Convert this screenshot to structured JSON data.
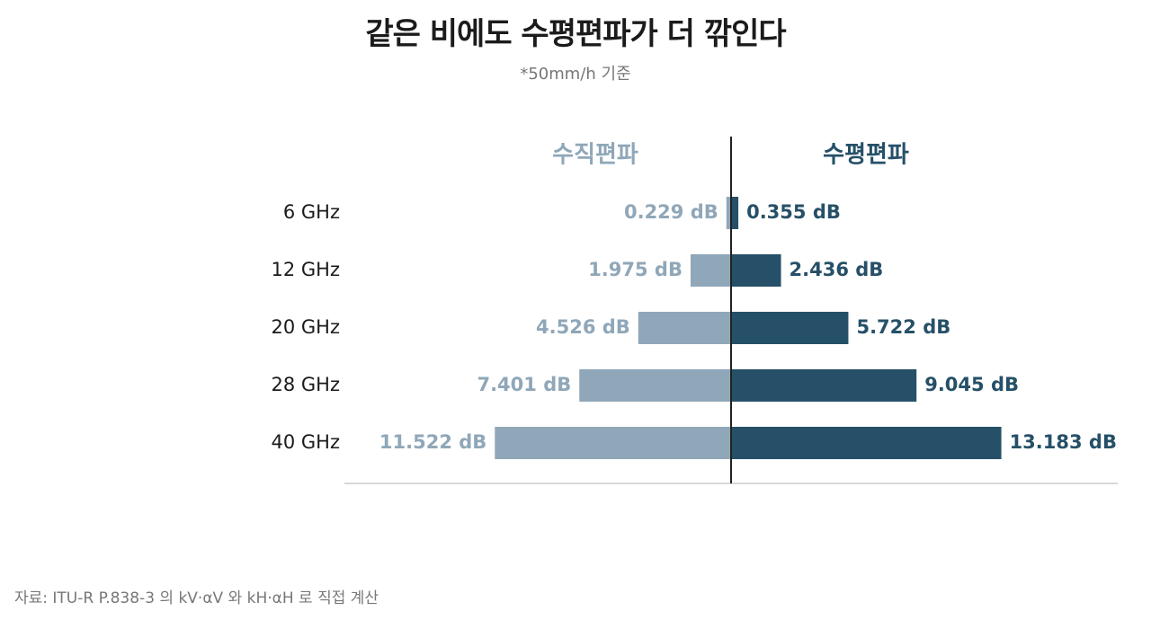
{
  "title": "같은 비에도 수평편파가 더 깎인다",
  "subtitle": "*50mm/h 기준",
  "source": "자료: ITU-R P.838-3 의 kV·αV 와 kH·αH 로 직접 계산",
  "colors": {
    "vertical": "#8fa7b8",
    "horizontal": "#265068",
    "axis": "#222222",
    "baseline": "#cccccc",
    "category_text": "#1b1b1b"
  },
  "chart_data": {
    "type": "bar",
    "orientation": "horizontal-diverging",
    "categories": [
      "6 GHz",
      "12 GHz",
      "20 GHz",
      "28 GHz",
      "40 GHz"
    ],
    "series": [
      {
        "name": "수직편파",
        "side": "left",
        "values": [
          0.229,
          1.975,
          4.526,
          7.401,
          11.522
        ],
        "labels": [
          "0.229 dB",
          "1.975 dB",
          "4.526 dB",
          "7.401 dB",
          "11.522 dB"
        ]
      },
      {
        "name": "수평편파",
        "side": "right",
        "values": [
          0.355,
          2.436,
          5.722,
          9.045,
          13.183
        ],
        "labels": [
          "0.355 dB",
          "2.436 dB",
          "5.722 dB",
          "9.045 dB",
          "13.183 dB"
        ]
      }
    ],
    "unit": "dB",
    "xlim": [
      0,
      19
    ],
    "grid": false
  }
}
